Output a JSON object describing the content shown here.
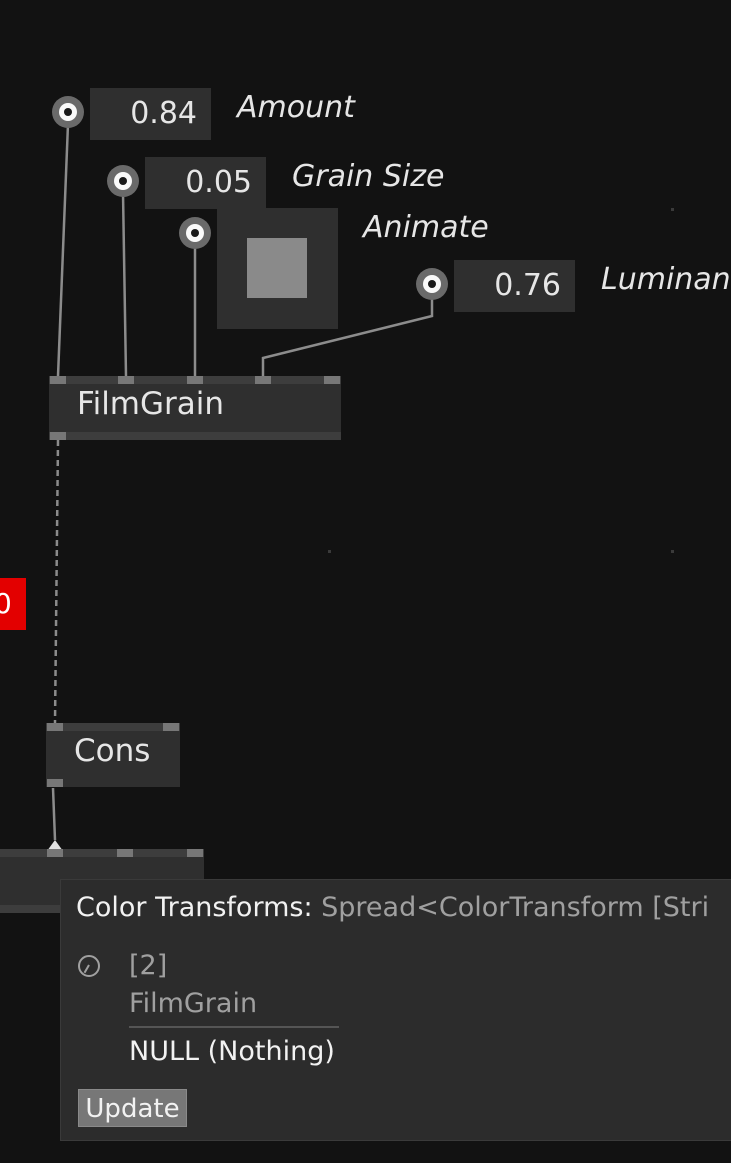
{
  "pins": {
    "amount": {
      "value": "0.84",
      "label": "Amount"
    },
    "grain_size": {
      "value": "0.05",
      "label": "Grain Size"
    },
    "animate": {
      "label": "Animate",
      "checked": true
    },
    "luminance": {
      "value": "0.76",
      "label": "Luminan"
    }
  },
  "nodes": {
    "filmgrain": {
      "title": "FilmGrain"
    },
    "cons": {
      "title": "Cons"
    }
  },
  "red_badge": {
    "text": "0"
  },
  "tooltip": {
    "key": "Color Transforms:",
    "type": "Spread<ColorTransform [Stri",
    "count": "[2]",
    "source": "FilmGrain",
    "value": "NULL (Nothing)",
    "update_label": "Update"
  },
  "colors": {
    "background": "#121212",
    "node": "#2f2f2f",
    "wire": "#8c8c8c",
    "error": "#e30000"
  }
}
